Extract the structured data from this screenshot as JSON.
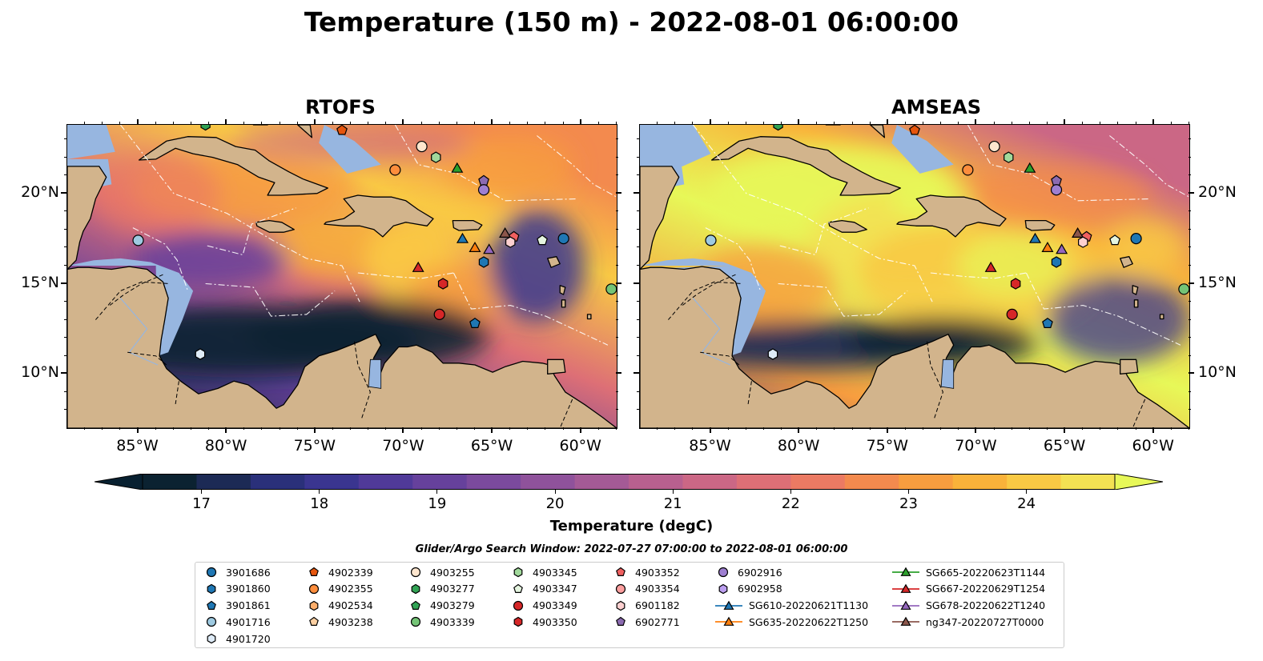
{
  "title": "Temperature (150 m) - 2022-08-01 06:00:00",
  "panels": [
    {
      "title": "RTOFS",
      "id": "rtofs"
    },
    {
      "title": "AMSEAS",
      "id": "amseas"
    }
  ],
  "lon_ticks": [
    "85°W",
    "80°W",
    "75°W",
    "70°W",
    "65°W",
    "60°W"
  ],
  "lat_ticks": [
    "20°N",
    "15°N",
    "10°N"
  ],
  "colorbar": {
    "label": "Temperature (degC)",
    "ticks": [
      "17",
      "18",
      "19",
      "20",
      "21",
      "22",
      "23",
      "24"
    ],
    "min": 16.5,
    "max": 24.75,
    "step": 0.5,
    "colors": [
      "#0b2231",
      "#1c2a55",
      "#2a307a",
      "#3a3590",
      "#503a99",
      "#66419c",
      "#7b4a9d",
      "#8f529b",
      "#a45a96",
      "#b8608f",
      "#cb6785",
      "#dd6f76",
      "#eb7a63",
      "#f38a4e",
      "#f79d3f",
      "#f9b23a",
      "#f9c944",
      "#f3e153"
    ],
    "extend_low": "#082030",
    "extend_high": "#e7f858"
  },
  "legend_title": "Glider/Argo Search Window: 2022-07-27 07:00:00 to 2022-08-01 06:00:00",
  "legend": {
    "columns": [
      [
        {
          "label": "3901686",
          "marker": "circle",
          "color": "#1f77b4"
        },
        {
          "label": "3901860",
          "marker": "hexagon",
          "color": "#1f77b4"
        },
        {
          "label": "3901861",
          "marker": "pentagon",
          "color": "#1f77b4"
        },
        {
          "label": "4901716",
          "marker": "circle",
          "color": "#9ecae1"
        },
        {
          "label": "4901720",
          "marker": "hexagon",
          "color": "#deebf7"
        }
      ],
      [
        {
          "label": "4902339",
          "marker": "pentagon",
          "color": "#e6550d"
        },
        {
          "label": "4902355",
          "marker": "circle",
          "color": "#fd8d3c"
        },
        {
          "label": "4902534",
          "marker": "hexagon",
          "color": "#fdae6b"
        },
        {
          "label": "4903238",
          "marker": "pentagon",
          "color": "#fdd0a2"
        }
      ],
      [
        {
          "label": "4903255",
          "marker": "circle",
          "color": "#fee6ce"
        },
        {
          "label": "4903277",
          "marker": "hexagon",
          "color": "#31a354"
        },
        {
          "label": "4903279",
          "marker": "pentagon",
          "color": "#31a354"
        },
        {
          "label": "4903339",
          "marker": "circle",
          "color": "#74c476"
        }
      ],
      [
        {
          "label": "4903345",
          "marker": "hexagon",
          "color": "#a1d99b"
        },
        {
          "label": "4903347",
          "marker": "pentagon",
          "color": "#e5f5e0"
        },
        {
          "label": "4903349",
          "marker": "circle",
          "color": "#d62728"
        },
        {
          "label": "4903350",
          "marker": "hexagon",
          "color": "#d62728"
        }
      ],
      [
        {
          "label": "4903352",
          "marker": "pentagon",
          "color": "#f06060"
        },
        {
          "label": "4903354",
          "marker": "circle",
          "color": "#fc9f9f"
        },
        {
          "label": "6901182",
          "marker": "hexagon",
          "color": "#fdd0d0"
        },
        {
          "label": "6902771",
          "marker": "pentagon",
          "color": "#8c6bb1"
        }
      ],
      [
        {
          "label": "6902916",
          "marker": "circle",
          "color": "#9e7fd1"
        },
        {
          "label": "6902958",
          "marker": "hexagon",
          "color": "#bc9ff0"
        },
        {
          "label": "SG610-20220621T1130",
          "marker": "triangle",
          "color": "#1f77b4",
          "line": true
        },
        {
          "label": "SG635-20220622T1250",
          "marker": "triangle",
          "color": "#ff7f0e",
          "line": true
        }
      ],
      [
        {
          "label": "SG665-20220623T1144",
          "marker": "triangle",
          "color": "#2ca02c",
          "line": true
        },
        {
          "label": "SG667-20220629T1254",
          "marker": "triangle",
          "color": "#d62728",
          "line": true
        },
        {
          "label": "SG678-20220622T1240",
          "marker": "triangle",
          "color": "#9467bd",
          "line": true
        },
        {
          "label": "ng347-20220727T0000",
          "marker": "triangle",
          "color": "#8c564b",
          "line": true
        }
      ]
    ]
  },
  "markers": [
    {
      "label": "3901686",
      "lon": -61.0,
      "lat": 17.5,
      "marker": "circle",
      "color": "#1f77b4"
    },
    {
      "label": "3901860",
      "lon": -65.5,
      "lat": 16.2,
      "marker": "hexagon",
      "color": "#1f77b4"
    },
    {
      "label": "3901861",
      "lon": -66.0,
      "lat": 12.8,
      "marker": "pentagon",
      "color": "#1f77b4"
    },
    {
      "label": "4901716",
      "lon": -85.0,
      "lat": 17.4,
      "marker": "circle",
      "color": "#9ecae1"
    },
    {
      "label": "4901720",
      "lon": -81.5,
      "lat": 11.1,
      "marker": "hexagon",
      "color": "#deebf7"
    },
    {
      "label": "4902339",
      "lon": -73.5,
      "lat": 23.5,
      "marker": "pentagon",
      "color": "#e6550d"
    },
    {
      "label": "4902355",
      "lon": -70.5,
      "lat": 21.3,
      "marker": "circle",
      "color": "#fd8d3c"
    },
    {
      "label": "4903255",
      "lon": -69.0,
      "lat": 22.6,
      "marker": "circle",
      "color": "#fee6ce"
    },
    {
      "label": "4903277",
      "lon": -81.2,
      "lat": 23.8,
      "marker": "hexagon",
      "color": "#31a354"
    },
    {
      "label": "4903339",
      "lon": -58.3,
      "lat": 14.7,
      "marker": "circle",
      "color": "#74c476"
    },
    {
      "label": "4903345",
      "lon": -68.2,
      "lat": 22.0,
      "marker": "hexagon",
      "color": "#a1d99b"
    },
    {
      "label": "4903347",
      "lon": -62.2,
      "lat": 17.4,
      "marker": "pentagon",
      "color": "#e5f5e0"
    },
    {
      "label": "4903349",
      "lon": -68.0,
      "lat": 13.3,
      "marker": "circle",
      "color": "#d62728"
    },
    {
      "label": "4903350",
      "lon": -67.8,
      "lat": 15.0,
      "marker": "hexagon",
      "color": "#d62728"
    },
    {
      "label": "4903352",
      "lon": -63.8,
      "lat": 17.6,
      "marker": "pentagon",
      "color": "#f06060"
    },
    {
      "label": "6901182",
      "lon": -64.0,
      "lat": 17.3,
      "marker": "hexagon",
      "color": "#fdd0d0"
    },
    {
      "label": "6902771",
      "lon": -65.5,
      "lat": 20.7,
      "marker": "pentagon",
      "color": "#8c6bb1"
    },
    {
      "label": "6902916",
      "lon": -65.5,
      "lat": 20.2,
      "marker": "circle",
      "color": "#9e7fd1"
    },
    {
      "label": "SG610-20220621T1130",
      "lon": -66.7,
      "lat": 17.5,
      "marker": "triangle",
      "color": "#1f77b4"
    },
    {
      "label": "SG635-20220622T1250",
      "lon": -66.0,
      "lat": 17.0,
      "marker": "triangle",
      "color": "#ff7f0e"
    },
    {
      "label": "SG665-20220623T1144",
      "lon": -67.0,
      "lat": 21.4,
      "marker": "triangle",
      "color": "#2ca02c"
    },
    {
      "label": "SG667-20220629T1254",
      "lon": -69.2,
      "lat": 15.9,
      "marker": "triangle",
      "color": "#d62728"
    },
    {
      "label": "SG678-20220622T1240",
      "lon": -65.2,
      "lat": 16.9,
      "marker": "triangle",
      "color": "#9467bd"
    },
    {
      "label": "ng347-20220727T0000",
      "lon": -64.3,
      "lat": 17.8,
      "marker": "triangle",
      "color": "#8c564b"
    }
  ],
  "map_extent": {
    "lon_min": -89.0,
    "lon_max": -58.0,
    "lat_min": 7.0,
    "lat_max": 23.8
  }
}
